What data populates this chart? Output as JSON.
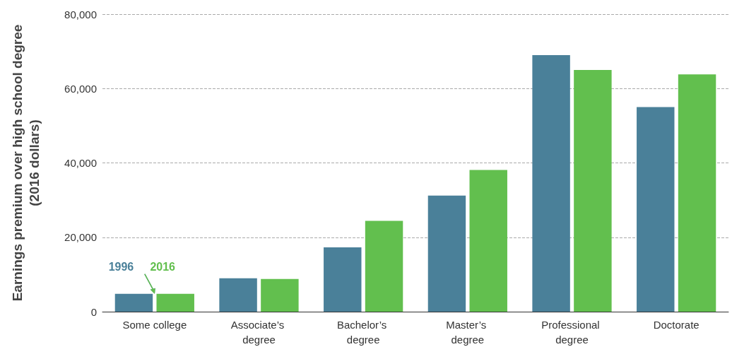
{
  "chart_data": {
    "type": "bar",
    "ylabel": "Earnings premium over high school degree (2016 dollars)",
    "categories": [
      "Some college",
      "Associate’s degree",
      "Bachelor’s degree",
      "Master’s degree",
      "Professional degree",
      "Doctorate"
    ],
    "series": [
      {
        "name": "1996",
        "color": "#4a8099",
        "values": [
          4800,
          9000,
          17300,
          31200,
          69000,
          55000
        ]
      },
      {
        "name": "2016",
        "color": "#62bf4e",
        "values": [
          4800,
          8800,
          24400,
          38100,
          65000,
          63800
        ]
      }
    ],
    "ylim": [
      0,
      80000
    ],
    "yticks": [
      0,
      {
        "value": 20000,
        "label": "20,000"
      },
      {
        "value": 40000,
        "label": "40,000"
      },
      {
        "value": 60000,
        "label": "60,000"
      },
      {
        "value": 80000,
        "label": "80,000"
      }
    ],
    "grid": "y",
    "legend": false
  }
}
